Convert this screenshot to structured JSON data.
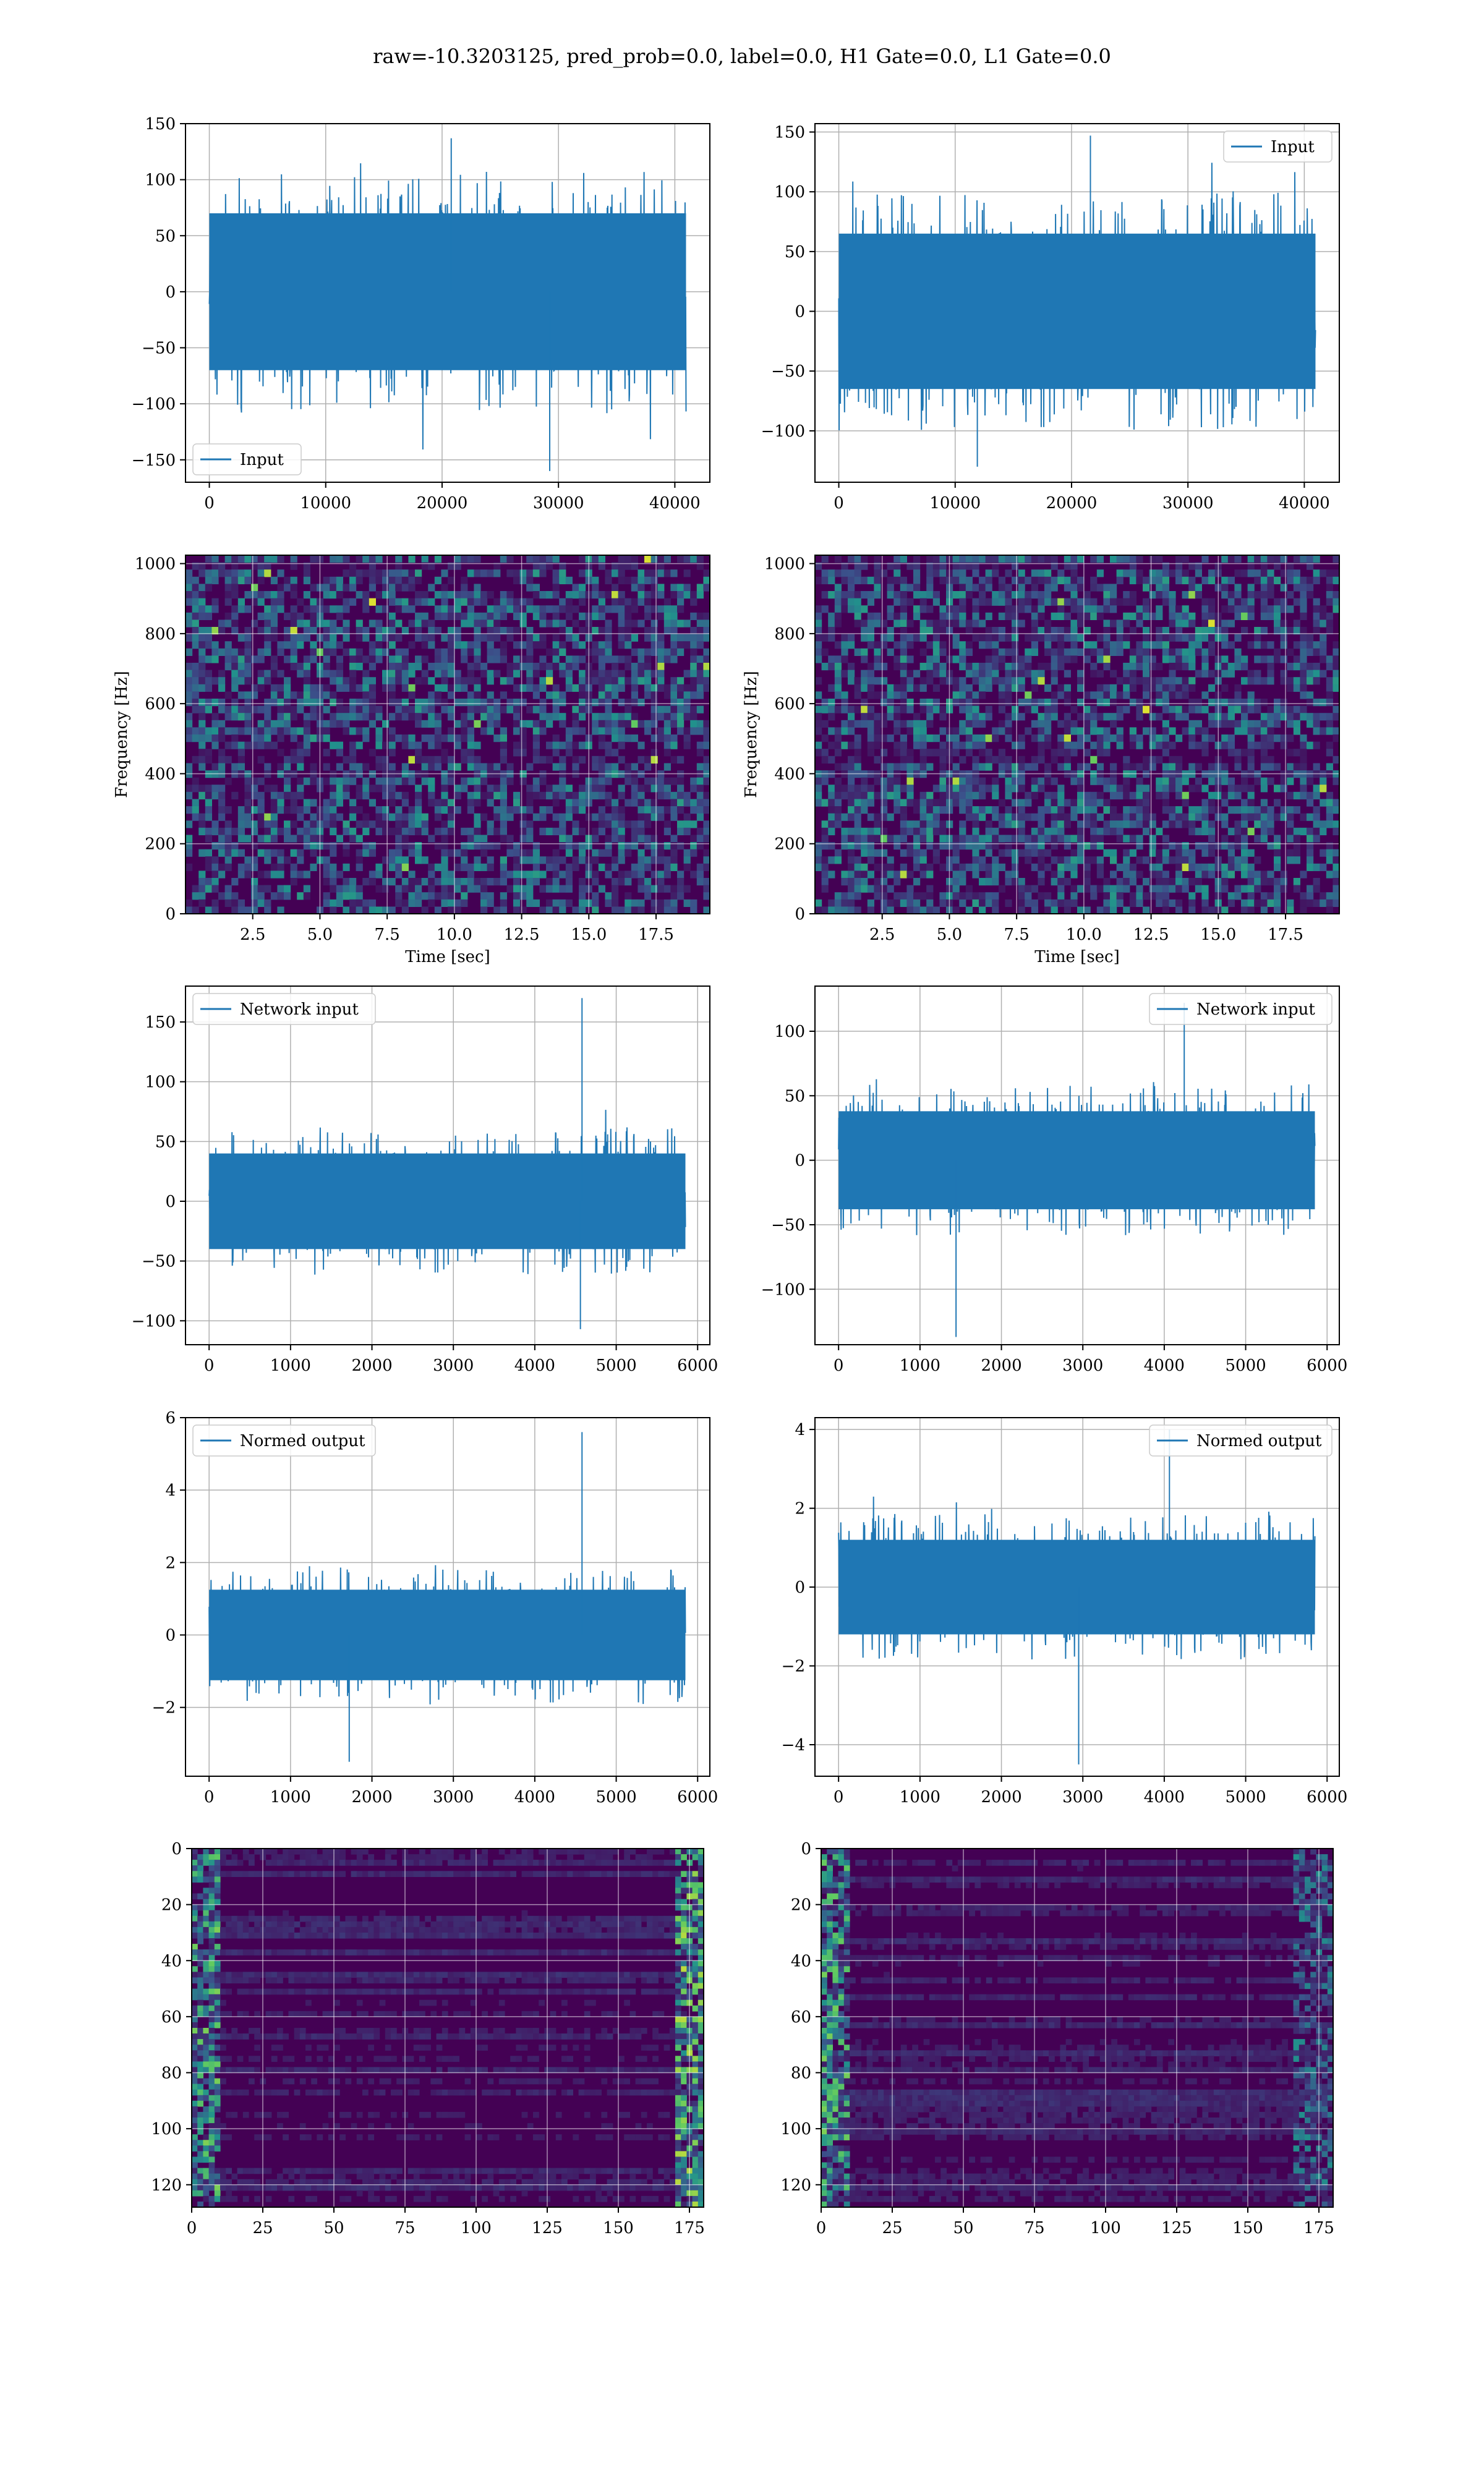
{
  "figure": {
    "suptitle": "raw=-10.3203125, pred_prob=0.0, label=0.0, H1 Gate=0.0, L1 Gate=0.0",
    "colors": {
      "line": "#1f77b4",
      "grid": "#b0b0b0",
      "viridis_dark": "#440154",
      "viridis_mid": "#3b528b",
      "viridis_teal": "#21918c",
      "viridis_green": "#5ec962",
      "viridis_yellow": "#fde725"
    }
  },
  "chart_data": [
    {
      "id": "input-h1",
      "type": "line",
      "x": [
        0,
        40960
      ],
      "xlim": [
        -2048,
        43008
      ],
      "ylim": [
        -170,
        150
      ],
      "xticks": [
        0,
        10000,
        20000,
        30000,
        40000
      ],
      "yticks": [
        -150,
        -100,
        -50,
        0,
        50,
        100,
        150
      ],
      "envelope": {
        "core": 70,
        "peak_max": 137,
        "peak_min": -160
      },
      "grid": true,
      "legend": {
        "entries": [
          "Input"
        ],
        "placement": "lower-left"
      },
      "series": [
        {
          "name": "Input"
        }
      ]
    },
    {
      "id": "input-l1",
      "type": "line",
      "x": [
        0,
        40960
      ],
      "xlim": [
        -2048,
        43008
      ],
      "ylim": [
        -143,
        157
      ],
      "xticks": [
        0,
        10000,
        20000,
        30000,
        40000
      ],
      "yticks": [
        -100,
        -50,
        0,
        50,
        100,
        150
      ],
      "envelope": {
        "core": 65,
        "peak_max": 147,
        "peak_min": -130
      },
      "grid": true,
      "legend": {
        "entries": [
          "Input"
        ],
        "placement": "upper-right"
      },
      "series": [
        {
          "name": "Input"
        }
      ]
    },
    {
      "id": "spectrogram-h1",
      "type": "heatmap",
      "xlabel": "Time [sec]",
      "ylabel": "Frequency [Hz]",
      "xlim": [
        0,
        19.5
      ],
      "ylim": [
        0,
        1024
      ],
      "xticks": [
        "2.5",
        "5.0",
        "7.5",
        "10.0",
        "12.5",
        "15.0",
        "17.5"
      ],
      "yticks": [
        "0",
        "200",
        "400",
        "600",
        "800",
        "1000"
      ],
      "grid": true,
      "colormap": "viridis"
    },
    {
      "id": "spectrogram-l1",
      "type": "heatmap",
      "xlabel": "Time [sec]",
      "ylabel": "Frequency [Hz]",
      "xlim": [
        0,
        19.5
      ],
      "ylim": [
        0,
        1024
      ],
      "xticks": [
        "2.5",
        "5.0",
        "7.5",
        "10.0",
        "12.5",
        "15.0",
        "17.5"
      ],
      "yticks": [
        "0",
        "200",
        "400",
        "600",
        "800",
        "1000"
      ],
      "grid": true,
      "colormap": "viridis"
    },
    {
      "id": "network-input-h1",
      "type": "line",
      "x": [
        0,
        5850
      ],
      "xlim": [
        -290,
        6150
      ],
      "ylim": [
        -120,
        180
      ],
      "xticks": [
        0,
        1000,
        2000,
        3000,
        4000,
        5000,
        6000
      ],
      "yticks": [
        -100,
        -50,
        0,
        50,
        100,
        150
      ],
      "envelope": {
        "core": 40,
        "peak_max": 170,
        "peak_min": -107,
        "spike_x": 4580,
        "spike_y": 170
      },
      "grid": true,
      "legend": {
        "entries": [
          "Network input"
        ],
        "placement": "upper-left"
      },
      "series": [
        {
          "name": "Network input"
        }
      ]
    },
    {
      "id": "network-input-l1",
      "type": "line",
      "x": [
        0,
        5850
      ],
      "xlim": [
        -290,
        6150
      ],
      "ylim": [
        -143,
        135
      ],
      "xticks": [
        0,
        1000,
        2000,
        3000,
        4000,
        5000,
        6000
      ],
      "yticks": [
        -100,
        -50,
        0,
        50,
        100
      ],
      "envelope": {
        "core": 38,
        "peak_max": 122,
        "peak_min": -137
      },
      "grid": true,
      "legend": {
        "entries": [
          "Network input"
        ],
        "placement": "upper-right"
      },
      "series": [
        {
          "name": "Network input"
        }
      ]
    },
    {
      "id": "normed-output-h1",
      "type": "line",
      "x": [
        0,
        5850
      ],
      "xlim": [
        -290,
        6150
      ],
      "ylim": [
        -3.9,
        6
      ],
      "xticks": [
        0,
        1000,
        2000,
        3000,
        4000,
        5000,
        6000
      ],
      "yticks": [
        -2,
        0,
        2,
        4,
        6
      ],
      "envelope": {
        "core": 1.25,
        "peak_max": 5.6,
        "peak_min": -3.5,
        "spike_x": 4580,
        "spike_y": 5.6
      },
      "grid": true,
      "legend": {
        "entries": [
          "Normed output"
        ],
        "placement": "upper-left"
      },
      "series": [
        {
          "name": "Normed output"
        }
      ]
    },
    {
      "id": "normed-output-l1",
      "type": "line",
      "x": [
        0,
        5850
      ],
      "xlim": [
        -290,
        6150
      ],
      "ylim": [
        -4.8,
        4.3
      ],
      "xticks": [
        0,
        1000,
        2000,
        3000,
        4000,
        5000,
        6000
      ],
      "yticks": [
        -4,
        -2,
        0,
        2,
        4
      ],
      "envelope": {
        "core": 1.2,
        "peak_max": 4.0,
        "peak_min": -4.5
      },
      "grid": true,
      "legend": {
        "entries": [
          "Normed output"
        ],
        "placement": "upper-right"
      },
      "series": [
        {
          "name": "Normed output"
        }
      ]
    },
    {
      "id": "feature-map-h1",
      "type": "heatmap",
      "xlim": [
        0,
        180
      ],
      "ylim": [
        128,
        0
      ],
      "xticks": [
        "0",
        "25",
        "50",
        "75",
        "100",
        "125",
        "150",
        "175"
      ],
      "yticks": [
        "0",
        "20",
        "40",
        "60",
        "80",
        "100",
        "120"
      ],
      "grid": true,
      "colormap": "viridis"
    },
    {
      "id": "feature-map-l1",
      "type": "heatmap",
      "xlim": [
        0,
        180
      ],
      "ylim": [
        128,
        0
      ],
      "xticks": [
        "0",
        "25",
        "50",
        "75",
        "100",
        "125",
        "150",
        "175"
      ],
      "yticks": [
        "0",
        "20",
        "40",
        "60",
        "80",
        "100",
        "120"
      ],
      "grid": true,
      "colormap": "viridis"
    }
  ]
}
